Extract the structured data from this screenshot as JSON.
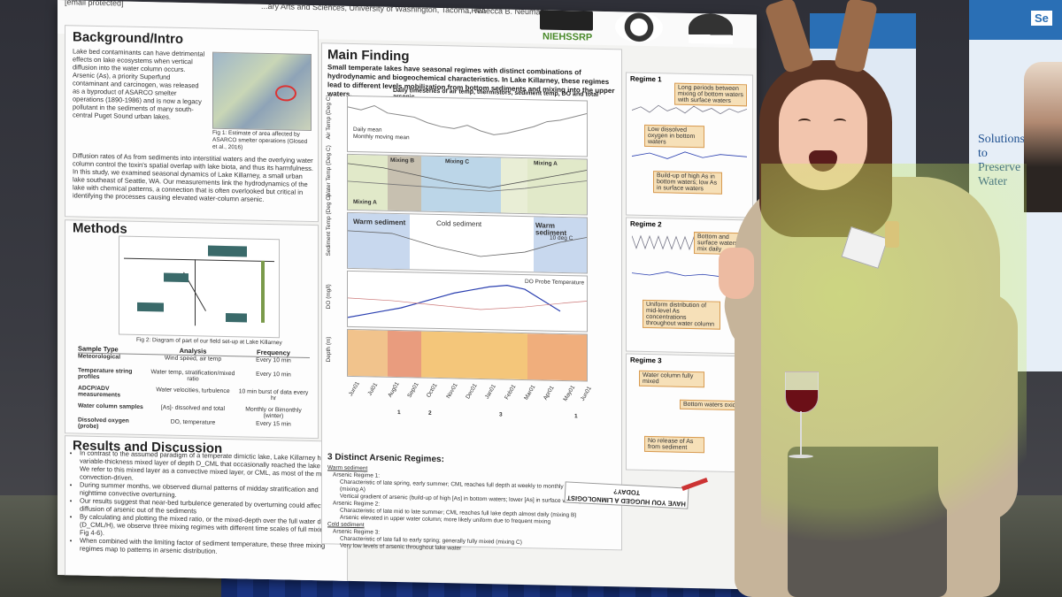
{
  "poster": {
    "header_left": "[email protected]",
    "header_mid": "...ary Arts and Sciences, University of Washington, Tacoma, WA",
    "header_author": "...Rebecca B. Neumann",
    "logo_nih": "NIEHSSRP",
    "background_title": "Background/Intro",
    "background_text": "Lake bed contaminants can have detrimental effects on lake ecosystems when vertical diffusion into the water column occurs. Arsenic (As), a priority Superfund contaminant and carcinogen, was released as a byproduct of ASARCO smelter operations (1890-1986) and is now a legacy pollutant in the sediments of many south-central Puget Sound urban lakes.",
    "background_text2": "Diffusion rates of As from sediments into interstitial waters and the overlying water column control the toxin's spatial overlap with lake biota, and thus its harmfulness. In this study, we examined seasonal dynamics of Lake Killarney, a small urban lake southeast of Seattle, WA. Our measurements link the hydrodynamics of the lake with chemical patterns, a connection that is often overlooked but critical in identifying the processes causing elevated water-column arsenic.",
    "map_caption": "Fig 1: Estimate of area affected by ASARCO smelter operations (Glosed et al., 2016)",
    "methods_title": "Methods",
    "diagram_caption": "Fig 2: Diagram of part of our field set-up at Lake Killarney",
    "methods_table": {
      "headers": [
        "Sample Type",
        "Analysis",
        "Frequency"
      ],
      "rows": [
        [
          "Meteorological",
          "Wind speed, air temp",
          "Every 10 min"
        ],
        [
          "Temperature string profiles",
          "Water temp, stratification/mixed ratio",
          "Every 10 min"
        ],
        [
          "ADCP/ADV measurements",
          "Water velocities, turbulence",
          "10 min burst of data every hr"
        ],
        [
          "Water column samples",
          "[As]- dissolved and total",
          "Monthly or Bimonthly (winter)"
        ],
        [
          "Dissolved oxygen (probe)",
          "DO, temperature",
          "Every 15 min"
        ]
      ]
    },
    "results_title": "Results and Discussion",
    "results_bullets": [
      "In contrast to the assumed paradigm of a temperate dimictic lake, Lake Killarney has a variable-thickness mixed layer of depth D_CML that occasionally reached the lake bed. We refer to this mixed layer as a convective mixed layer, or CML, as most of the mixing is convection-driven.",
      "During summer months, we observed diurnal patterns of midday stratification and nighttime convective overturning.",
      "Our results suggest that near-bed turbulence generated by overturning could affect diffusion of arsenic out of the sediments",
      "By calculating and plotting the mixed ratio, or the mixed-depth over the full water depth (D_CML/H), we observe three mixing regimes with different time scales of full mixing (see Fig 4-6).",
      "When combined with the limiting factor of sediment temperature, these three mixing regimes map to patterns in arsenic distribution."
    ],
    "main_title": "Main Finding",
    "main_text": "Small temperate lakes have seasonal regimes with distinct combinations of hydrodynamic and biogeochemical characteristics. In Lake Killarney, these regimes lead to different levels mobilization from bottom sediments and mixing into the upper waters.",
    "chart_title": "Daily timeseries of air temp, thermistors, sediment temp, DO and total arsenic",
    "chart_labels": {
      "air_temp": "Air Temp (Deg C)",
      "water_temp": "Water Temp (Deg C)",
      "sediment_temp": "Sediment Temp (Deg C)",
      "do": "DO (mg/l)",
      "depth": "Depth (m)",
      "daily_mean": "Daily mean",
      "monthly_mean": "Monthly moving mean",
      "mixing_a": "Mixing A",
      "mixing_b": "Mixing B",
      "mixing_c": "Mixing C",
      "mixing_a2": "Mixing A",
      "mixing_a3": "Mixing A",
      "warm_sediment": "Warm sediment",
      "cold_sediment": "Cold sediment",
      "warm_sediment2": "Warm sediment",
      "ten_deg": "10 deg C",
      "do_probe": "DO Probe Temperature",
      "regime_nums": [
        "1",
        "2",
        "3",
        "1"
      ]
    },
    "x_ticks": [
      "Jun01",
      "Jul01",
      "Aug01",
      "Sep01",
      "Oct01",
      "Nov01",
      "Dec01",
      "Jan01",
      "Feb01",
      "Mar01",
      "Apr01",
      "May01",
      "Jun01"
    ],
    "regimes_title": "3 Distinct Arsenic Regimes:",
    "regimes": [
      {
        "heading": "Warm sediment",
        "name": "Arsenic Regime 1:",
        "items": [
          "Characteristic of late spring, early summer; CML reaches full depth at weekly to monthly timescales (mixing A)",
          "Vertical gradient of arsenic (build-up of high [As] in bottom waters; lower [As] in surface waters)"
        ]
      },
      {
        "heading": "",
        "name": "Arsenic Regime 2:",
        "items": [
          "Characteristic of late mid to late summer; CML reaches full lake depth almost daily (mixing B)",
          "Arsenic elevated in upper water column; more likely uniform due to frequent mixing"
        ]
      },
      {
        "heading": "Cold sediment",
        "name": "Arsenic Regime 3:",
        "items": [
          "Characteristic of late fall to early spring; generally fully mixed (mixing C)",
          "Very low levels of arsenic throughout lake water"
        ]
      }
    ],
    "regime1_title": "Regime 1",
    "regime1_tags": [
      "Long periods between mixing of bottom waters with surface waters",
      "Low dissolved oxygen in bottom waters",
      "Build-up of high As in bottom waters; low As in surface waters"
    ],
    "regime2_title": "Regime 2",
    "regime2_tags": [
      "Bottom and surface waters mix daily",
      "Uniform distribution of mid-level As concentrations throughout water column"
    ],
    "regime3_title": "Regime 3",
    "regime3_tags": [
      "Water column fully mixed",
      "Bottom waters oxic",
      "No release of As from sediment"
    ],
    "sign_text": "HAVE YOU HUGGED A LIMNOLOGIST TODAY?"
  },
  "banner_right": {
    "brand": "Se",
    "slogan": "Solutions to Preserve Water"
  },
  "colors": {
    "poster_bg": "#f3f3f1",
    "tag_fill": "#f6e0b8",
    "mixing_b_fill": "#c7c0b0",
    "mixing_c_fill": "#bcd6e8",
    "mixing_a_fill": "#e1e9c9",
    "warm_fill": "#c8d8ee",
    "heat_low": "#f1c38c",
    "heat_high": "#e99c7e"
  },
  "icons": [
    "wine-glass-icon",
    "antler-headband-icon",
    "thumbs-up-icon"
  ]
}
